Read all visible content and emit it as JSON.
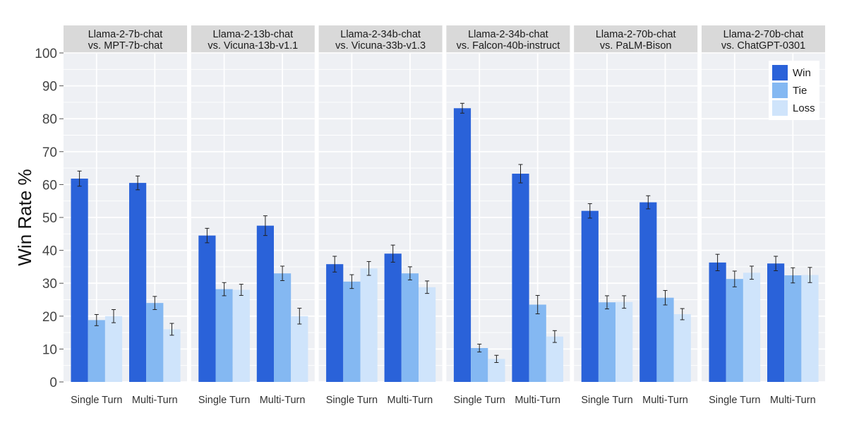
{
  "chart_data": {
    "type": "bar",
    "ylabel": "Win Rate %",
    "ylim": [
      0,
      100
    ],
    "yticks": [
      0,
      10,
      20,
      30,
      40,
      50,
      60,
      70,
      80,
      90,
      100
    ],
    "categories": [
      "Single Turn",
      "Multi-Turn"
    ],
    "grid": true,
    "legend": {
      "placement": "top-right",
      "entries": [
        {
          "name": "Win",
          "color": "#2a62d9"
        },
        {
          "name": "Tie",
          "color": "#84b8f2"
        },
        {
          "name": "Loss",
          "color": "#cfe4fb"
        }
      ]
    },
    "panels": [
      {
        "title_line1": "Llama-2-7b-chat",
        "title_line2": "vs. MPT-7b-chat",
        "groups": [
          {
            "category": "Single Turn",
            "win": 61.8,
            "win_err": 2.3,
            "tie": 18.8,
            "tie_err": 1.7,
            "loss": 20.0,
            "loss_err": 2.0
          },
          {
            "category": "Multi-Turn",
            "win": 60.5,
            "win_err": 2.1,
            "tie": 24.0,
            "tie_err": 2.0,
            "loss": 16.0,
            "loss_err": 1.8
          }
        ]
      },
      {
        "title_line1": "Llama-2-13b-chat",
        "title_line2": "vs. Vicuna-13b-v1.1",
        "groups": [
          {
            "category": "Single Turn",
            "win": 44.5,
            "win_err": 2.2,
            "tie": 28.2,
            "tie_err": 2.0,
            "loss": 28.0,
            "loss_err": 1.7
          },
          {
            "category": "Multi-Turn",
            "win": 47.5,
            "win_err": 3.0,
            "tie": 33.0,
            "tie_err": 2.2,
            "loss": 20.0,
            "loss_err": 2.4
          }
        ]
      },
      {
        "title_line1": "Llama-2-34b-chat",
        "title_line2": "vs. Vicuna-33b-v1.3",
        "groups": [
          {
            "category": "Single Turn",
            "win": 35.8,
            "win_err": 2.4,
            "tie": 30.5,
            "tie_err": 2.1,
            "loss": 34.5,
            "loss_err": 2.1
          },
          {
            "category": "Multi-Turn",
            "win": 39.0,
            "win_err": 2.6,
            "tie": 33.0,
            "tie_err": 2.0,
            "loss": 28.8,
            "loss_err": 1.9
          }
        ]
      },
      {
        "title_line1": "Llama-2-34b-chat",
        "title_line2": "vs. Falcon-40b-instruct",
        "groups": [
          {
            "category": "Single Turn",
            "win": 83.2,
            "win_err": 1.5,
            "tie": 10.3,
            "tie_err": 1.2,
            "loss": 7.0,
            "loss_err": 1.1
          },
          {
            "category": "Multi-Turn",
            "win": 63.3,
            "win_err": 2.8,
            "tie": 23.5,
            "tie_err": 2.8,
            "loss": 13.8,
            "loss_err": 1.8
          }
        ]
      },
      {
        "title_line1": "Llama-2-70b-chat",
        "title_line2": "vs. PaLM-Bison",
        "groups": [
          {
            "category": "Single Turn",
            "win": 52.0,
            "win_err": 2.2,
            "tie": 24.2,
            "tie_err": 2.0,
            "loss": 24.3,
            "loss_err": 1.9
          },
          {
            "category": "Multi-Turn",
            "win": 54.6,
            "win_err": 2.0,
            "tie": 25.6,
            "tie_err": 2.2,
            "loss": 20.6,
            "loss_err": 1.7
          }
        ]
      },
      {
        "title_line1": "Llama-2-70b-chat",
        "title_line2": "vs. ChatGPT-0301",
        "groups": [
          {
            "category": "Single Turn",
            "win": 36.3,
            "win_err": 2.5,
            "tie": 31.3,
            "tie_err": 2.4,
            "loss": 33.2,
            "loss_err": 2.0
          },
          {
            "category": "Multi-Turn",
            "win": 36.0,
            "win_err": 2.2,
            "tie": 32.4,
            "tie_err": 2.3,
            "loss": 32.5,
            "loss_err": 2.3
          }
        ]
      }
    ]
  }
}
